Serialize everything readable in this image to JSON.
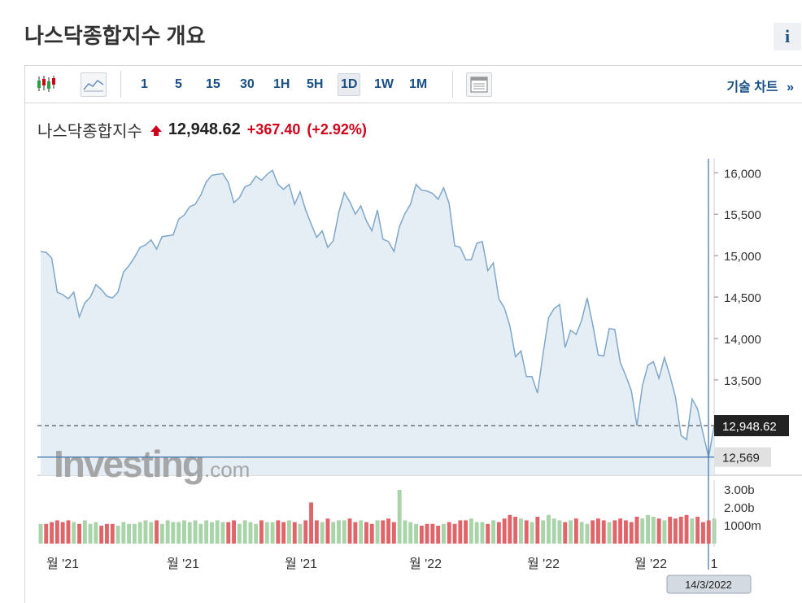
{
  "page": {
    "title": "나스닥종합지수 개요",
    "info_icon": "i"
  },
  "toolbar": {
    "candle_icon": "candlestick-icon",
    "area_icon": "area-chart-icon",
    "timeframes": [
      "1",
      "5",
      "15",
      "30",
      "1H",
      "5H",
      "1D",
      "1W",
      "1M"
    ],
    "active_timeframe": "1D",
    "table_icon": "table-icon",
    "tech_chart_label": "기술 차트",
    "tech_chart_arrow": "»"
  },
  "quote": {
    "name": "나스닥종합지수",
    "price": "12,948.62",
    "change": "+367.40",
    "change_pct": "(+2.92%)",
    "up_color": "#d0021b"
  },
  "watermark": {
    "brand": "Investing",
    "suffix": ".com"
  },
  "colors": {
    "line": "#7fa6c9",
    "fill": "#e6eef5",
    "volume_up": "#e0656a",
    "volume_down": "#a9d3a9",
    "crosshair": "#4a79ad"
  },
  "chart_data": {
    "type": "area",
    "ylim": [
      12350,
      16170
    ],
    "y_ticks": [
      16000,
      15500,
      15000,
      14500,
      14000,
      13500
    ],
    "y_tick_labels": [
      "16,000",
      "15,500",
      "15,000",
      "14,500",
      "14,000",
      "13,500"
    ],
    "x_tick_labels": [
      "월 '21",
      "월 '21",
      "월 '21",
      "월 '22",
      "월 '22",
      "월 '22",
      "1"
    ],
    "last_price_label": "12,948.62",
    "crosshair_price_label": "12,569",
    "crosshair_date_label": "14/3/2022",
    "values": [
      15050,
      15040,
      14970,
      14560,
      14530,
      14480,
      14560,
      14260,
      14430,
      14500,
      14650,
      14590,
      14510,
      14490,
      14560,
      14800,
      14880,
      14980,
      15100,
      15130,
      15190,
      15080,
      15230,
      15240,
      15250,
      15440,
      15490,
      15590,
      15620,
      15730,
      15890,
      15970,
      15980,
      15990,
      15880,
      15640,
      15700,
      15830,
      15860,
      15960,
      15910,
      15980,
      16030,
      15860,
      15800,
      15860,
      15620,
      15770,
      15550,
      15380,
      15220,
      15300,
      15100,
      15180,
      15520,
      15760,
      15650,
      15500,
      15600,
      15420,
      15300,
      15550,
      15200,
      15170,
      15050,
      15350,
      15510,
      15620,
      15860,
      15790,
      15780,
      15750,
      15680,
      15820,
      15630,
      15120,
      15100,
      14950,
      14950,
      15150,
      15170,
      14820,
      14910,
      14480,
      14370,
      14150,
      13780,
      13850,
      13540,
      13540,
      13340,
      13810,
      14250,
      14360,
      14410,
      13890,
      14100,
      14050,
      14220,
      14490,
      14170,
      13800,
      13790,
      14120,
      14110,
      13710,
      13550,
      13370,
      12950,
      13430,
      13680,
      13720,
      13520,
      13770,
      13550,
      13290,
      12830,
      12780,
      13270,
      13150,
      12850,
      12570,
      12950
    ],
    "volumes_billion": [
      1.1,
      1.1,
      1.2,
      1.3,
      1.2,
      1.3,
      1.2,
      1.1,
      1.3,
      1.1,
      1.2,
      1.0,
      1.1,
      1.1,
      1.0,
      1.2,
      1.1,
      1.1,
      1.2,
      1.3,
      1.2,
      1.3,
      1.1,
      1.3,
      1.2,
      1.2,
      1.3,
      1.2,
      1.3,
      1.1,
      1.3,
      1.2,
      1.3,
      1.2,
      1.2,
      1.3,
      1.1,
      1.3,
      1.2,
      1.1,
      1.3,
      1.2,
      1.2,
      1.3,
      1.2,
      1.3,
      1.2,
      1.1,
      1.3,
      2.3,
      1.3,
      1.2,
      1.4,
      1.2,
      1.3,
      1.3,
      1.4,
      1.2,
      1.3,
      1.2,
      1.1,
      1.3,
      1.3,
      1.4,
      1.2,
      3.0,
      1.3,
      1.2,
      1.1,
      1.0,
      1.1,
      1.1,
      1.0,
      1.1,
      1.2,
      1.1,
      1.3,
      1.3,
      1.4,
      1.2,
      1.2,
      1.1,
      1.3,
      1.2,
      1.4,
      1.6,
      1.5,
      1.4,
      1.3,
      1.2,
      1.5,
      1.3,
      1.6,
      1.4,
      1.3,
      1.2,
      1.3,
      1.4,
      1.2,
      1.1,
      1.3,
      1.4,
      1.3,
      1.2,
      1.3,
      1.4,
      1.3,
      1.2,
      1.5,
      1.4,
      1.6,
      1.5,
      1.4,
      1.3,
      1.5,
      1.4,
      1.5,
      1.6,
      1.4,
      1.5,
      1.2,
      1.3,
      1.4
    ],
    "volume_ticks": [
      "3.00b",
      "2.00b",
      "1000m"
    ]
  }
}
